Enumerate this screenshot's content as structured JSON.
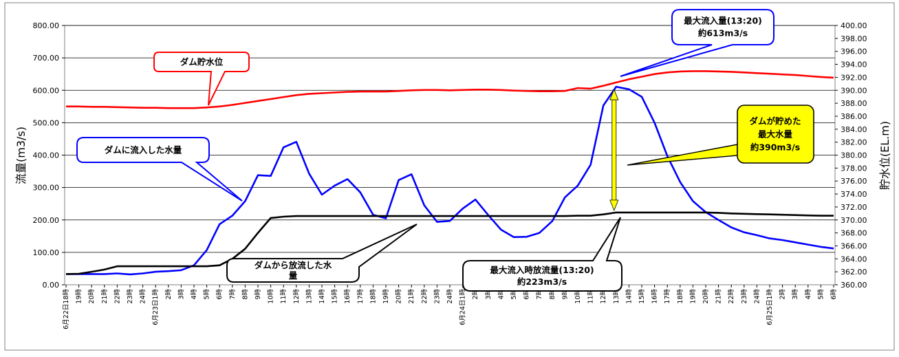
{
  "chart_data": {
    "type": "line",
    "ylabel": "流量(m3/s)",
    "y2label": "貯水位(EL.m)",
    "ylim": [
      0,
      800
    ],
    "y2lim": [
      360,
      400
    ],
    "y_ticks": [
      "0.00",
      "100.00",
      "200.00",
      "300.00",
      "400.00",
      "500.00",
      "600.00",
      "700.00",
      "800.00"
    ],
    "y2_ticks": [
      "360.00",
      "362.00",
      "364.00",
      "366.00",
      "368.00",
      "370.00",
      "372.00",
      "374.00",
      "376.00",
      "378.00",
      "380.00",
      "382.00",
      "384.00",
      "386.00",
      "388.00",
      "390.00",
      "392.00",
      "394.00",
      "396.00",
      "398.00",
      "400.00"
    ],
    "grid": true,
    "categories": [
      "6月22日18時",
      "19時",
      "20時",
      "21時",
      "22時",
      "23時",
      "24時",
      "6月23日1時",
      "2時",
      "3時",
      "4時",
      "5時",
      "6時",
      "7時",
      "8時",
      "9時",
      "10時",
      "11時",
      "12時",
      "13時",
      "14時",
      "15時",
      "16時",
      "17時",
      "18時",
      "19時",
      "20時",
      "21時",
      "22時",
      "23時",
      "24時",
      "6月24日1時",
      "2時",
      "3時",
      "4時",
      "5時",
      "6時",
      "7時",
      "8時",
      "9時",
      "10時",
      "11時",
      "12時",
      "13時",
      "14時",
      "15時",
      "16時",
      "17時",
      "18時",
      "19時",
      "20時",
      "21時",
      "22時",
      "23時",
      "24時",
      "6月25日1時",
      "2時",
      "3時",
      "4時",
      "5時",
      "6時"
    ],
    "series": [
      {
        "name": "ダム貯水位",
        "axis": "right",
        "color": "#ff0000",
        "values": [
          387.5,
          387.5,
          387.45,
          387.45,
          387.4,
          387.35,
          387.3,
          387.3,
          387.25,
          387.25,
          387.25,
          387.35,
          387.5,
          387.75,
          388.05,
          388.35,
          388.65,
          388.95,
          389.25,
          389.45,
          389.55,
          389.65,
          389.75,
          389.8,
          389.8,
          389.8,
          389.9,
          390.0,
          390.05,
          390.05,
          390.0,
          390.05,
          390.1,
          390.1,
          390.05,
          389.95,
          389.9,
          389.85,
          389.85,
          389.9,
          390.35,
          390.25,
          390.7,
          391.2,
          391.7,
          392.1,
          392.5,
          392.75,
          392.9,
          392.95,
          392.95,
          392.9,
          392.85,
          392.75,
          392.65,
          392.55,
          392.45,
          392.35,
          392.2,
          392.05,
          391.95
        ]
      },
      {
        "name": "ダムに流入した水量",
        "axis": "left",
        "color": "#0000ff",
        "values": [
          33,
          33,
          33,
          33,
          35,
          32,
          35,
          40,
          42,
          45,
          60,
          107,
          187,
          213,
          258,
          338,
          336,
          424,
          441,
          343,
          278,
          306,
          326,
          285,
          216,
          205,
          323,
          341,
          245,
          194,
          197,
          235,
          263,
          215,
          170,
          147,
          148,
          160,
          196,
          270,
          306,
          370,
          553,
          611,
          603,
          580,
          500,
          397,
          317,
          258,
          224,
          200,
          177,
          162,
          153,
          143,
          138,
          131,
          124,
          117,
          112
        ]
      },
      {
        "name": "ダムから放流した水量",
        "axis": "left",
        "color": "#000000",
        "values": [
          33,
          34,
          40,
          47,
          57,
          57,
          57,
          57,
          57,
          57,
          57,
          57,
          60,
          80,
          111,
          160,
          206,
          210,
          212,
          212,
          212,
          212,
          212,
          212,
          212,
          212,
          212,
          212,
          212,
          212,
          212,
          212,
          212,
          212,
          212,
          212,
          212,
          212,
          212,
          212,
          213,
          213,
          217,
          223,
          223,
          223,
          223,
          223,
          223,
          223,
          223,
          222,
          220,
          219,
          218,
          217,
          216,
          215,
          214,
          213,
          213
        ]
      }
    ],
    "annotations": [
      {
        "id": "reservoir",
        "lines": [
          "ダム貯水位"
        ]
      },
      {
        "id": "inflow",
        "lines": [
          "ダムに流入した水量"
        ]
      },
      {
        "id": "outflow",
        "lines": [
          "ダムから放流した水",
          "量"
        ]
      },
      {
        "id": "max_inflow",
        "lines": [
          "最大流入量(13:20)",
          "約613m3/s"
        ]
      },
      {
        "id": "max_outflow",
        "lines": [
          "最大流入時放流量(13:20)",
          "約223m3/s"
        ]
      },
      {
        "id": "storage",
        "lines": [
          "ダムが貯めた",
          "最大水量",
          "約390m3/s"
        ]
      }
    ]
  }
}
